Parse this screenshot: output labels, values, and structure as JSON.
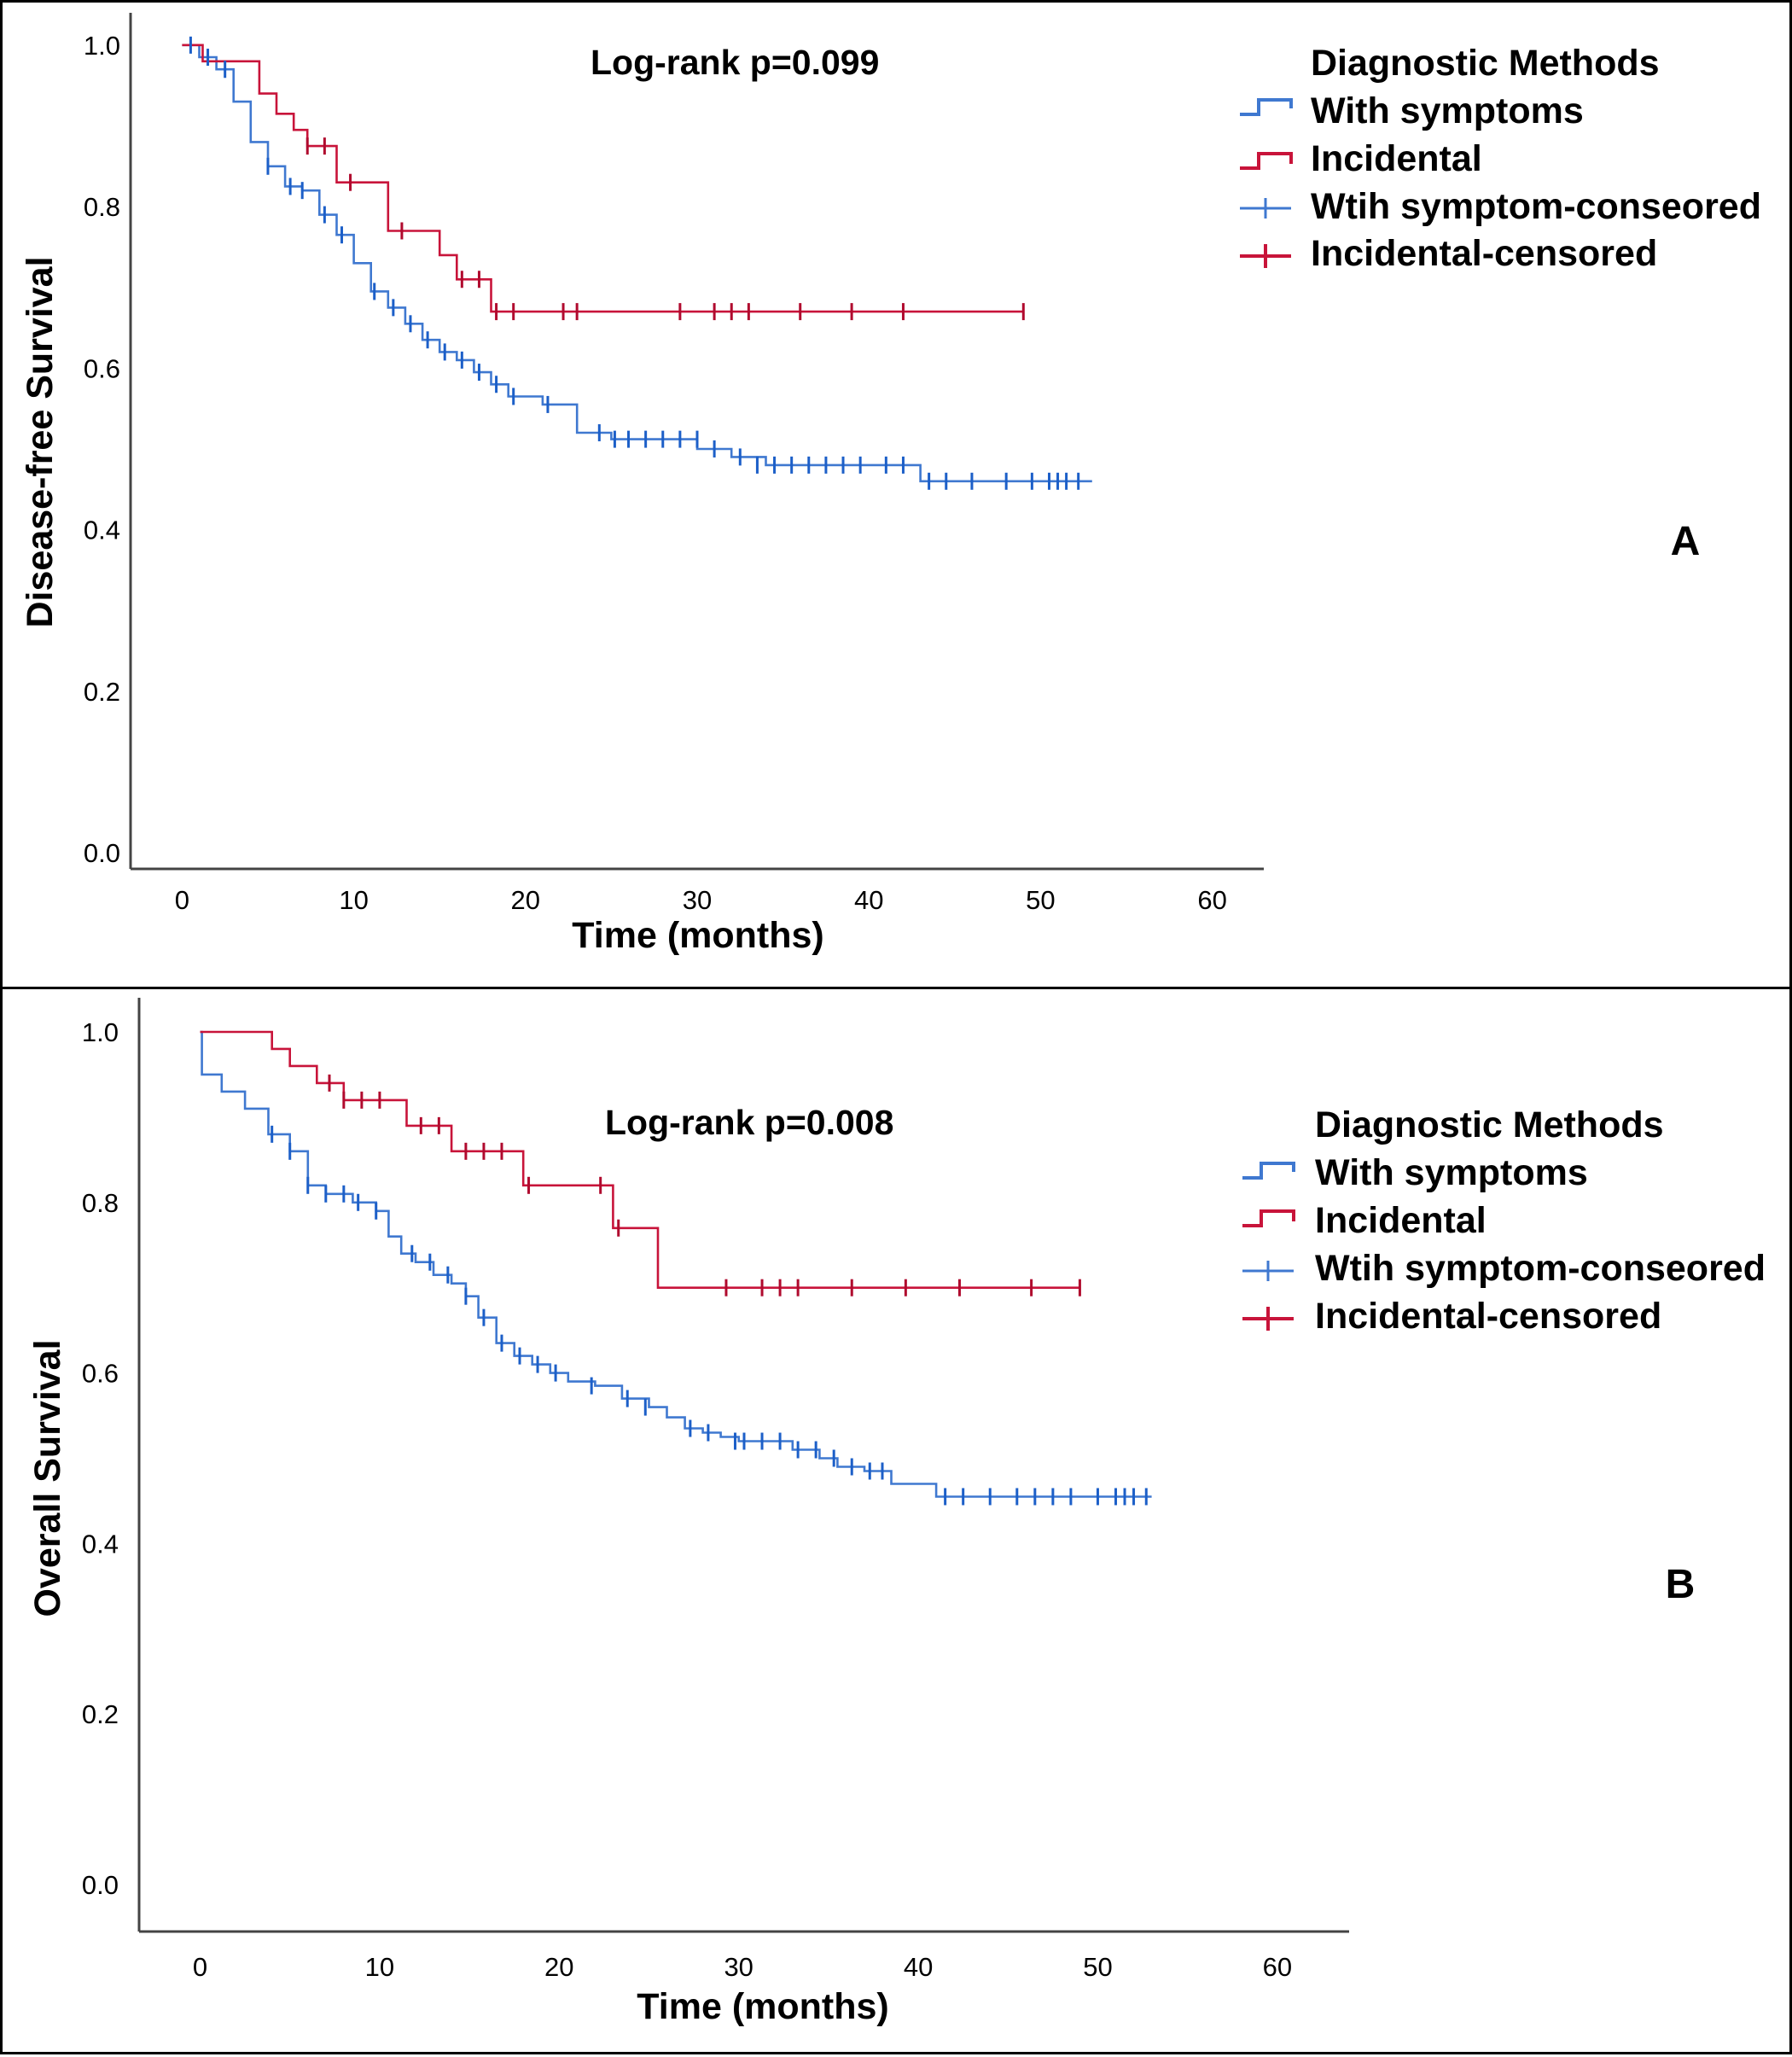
{
  "colors": {
    "with_symptoms": "#3f78d0",
    "with_symptoms_censor": "#1c5fc8",
    "incidental": "#c8143a",
    "incidental_censor": "#b00a2e",
    "axis": "#444444"
  },
  "chart_data": [
    {
      "type": "line",
      "subtype": "kaplan-meier",
      "panel_label": "A",
      "annotation": "Log-rank p=0.099",
      "xlabel": "Time (months)",
      "ylabel": "Disease-free Survival",
      "xlim": [
        -3,
        63
      ],
      "ylim": [
        -0.02,
        1.04
      ],
      "xticks": [
        0,
        10,
        20,
        30,
        40,
        50,
        60
      ],
      "yticks": [
        0.0,
        0.2,
        0.4,
        0.6,
        0.8,
        1.0
      ],
      "ytick_labels": [
        "0.0",
        "0.2",
        "0.4",
        "0.6",
        "0.8",
        "1.0"
      ],
      "legend_title": "Diagnostic Methods",
      "legend": [
        "With symptoms",
        "Incidental",
        "Wtih symptom-conseored",
        "Incidental-censored"
      ],
      "series": [
        {
          "name": "With symptoms",
          "color_key": "with_symptoms",
          "steps": [
            [
              0,
              1.0
            ],
            [
              1,
              0.985
            ],
            [
              2,
              0.97
            ],
            [
              3,
              0.93
            ],
            [
              4,
              0.88
            ],
            [
              5,
              0.85
            ],
            [
              6,
              0.825
            ],
            [
              7,
              0.82
            ],
            [
              8,
              0.79
            ],
            [
              9,
              0.765
            ],
            [
              10,
              0.73
            ],
            [
              11,
              0.695
            ],
            [
              12,
              0.675
            ],
            [
              13,
              0.655
            ],
            [
              14,
              0.635
            ],
            [
              15,
              0.62
            ],
            [
              16,
              0.61
            ],
            [
              17,
              0.595
            ],
            [
              18,
              0.58
            ],
            [
              19,
              0.565
            ],
            [
              21,
              0.555
            ],
            [
              23,
              0.52
            ],
            [
              25,
              0.512
            ],
            [
              30,
              0.5
            ],
            [
              32,
              0.49
            ],
            [
              34,
              0.48
            ],
            [
              43,
              0.46
            ],
            [
              53,
              0.46
            ]
          ],
          "censored": [
            [
              0.5,
              1.0
            ],
            [
              1.5,
              0.985
            ],
            [
              2.5,
              0.97
            ],
            [
              5,
              0.85
            ],
            [
              6.3,
              0.825
            ],
            [
              7,
              0.82
            ],
            [
              8.3,
              0.79
            ],
            [
              9.3,
              0.765
            ],
            [
              11.2,
              0.695
            ],
            [
              12.3,
              0.675
            ],
            [
              13.3,
              0.655
            ],
            [
              14.3,
              0.635
            ],
            [
              15.3,
              0.62
            ],
            [
              16.3,
              0.61
            ],
            [
              17.3,
              0.595
            ],
            [
              18.3,
              0.58
            ],
            [
              19.3,
              0.565
            ],
            [
              21.3,
              0.555
            ],
            [
              24.3,
              0.52
            ],
            [
              25.2,
              0.512
            ],
            [
              26,
              0.512
            ],
            [
              27,
              0.512
            ],
            [
              28,
              0.512
            ],
            [
              29,
              0.512
            ],
            [
              30,
              0.512
            ],
            [
              31,
              0.5
            ],
            [
              32.5,
              0.49
            ],
            [
              33.5,
              0.48
            ],
            [
              34.5,
              0.48
            ],
            [
              35.5,
              0.48
            ],
            [
              36.5,
              0.48
            ],
            [
              37.5,
              0.48
            ],
            [
              38.5,
              0.48
            ],
            [
              39.5,
              0.48
            ],
            [
              41,
              0.48
            ],
            [
              42,
              0.48
            ],
            [
              43.5,
              0.46
            ],
            [
              44.5,
              0.46
            ],
            [
              46,
              0.46
            ],
            [
              48,
              0.46
            ],
            [
              49.5,
              0.46
            ],
            [
              50.5,
              0.46
            ],
            [
              51,
              0.46
            ],
            [
              51.5,
              0.46
            ],
            [
              52.2,
              0.46
            ]
          ]
        },
        {
          "name": "Incidental",
          "color_key": "incidental",
          "steps": [
            [
              0,
              1.0
            ],
            [
              1.2,
              0.98
            ],
            [
              4.5,
              0.94
            ],
            [
              5.5,
              0.915
            ],
            [
              6.5,
              0.895
            ],
            [
              7.3,
              0.875
            ],
            [
              9,
              0.83
            ],
            [
              12,
              0.77
            ],
            [
              15,
              0.74
            ],
            [
              16,
              0.71
            ],
            [
              18,
              0.67
            ],
            [
              49,
              0.67
            ]
          ],
          "censored": [
            [
              7.3,
              0.875
            ],
            [
              8.3,
              0.875
            ],
            [
              9.8,
              0.83
            ],
            [
              12.8,
              0.77
            ],
            [
              16.3,
              0.71
            ],
            [
              17.3,
              0.71
            ],
            [
              18.3,
              0.67
            ],
            [
              19.3,
              0.67
            ],
            [
              22.2,
              0.67
            ],
            [
              23,
              0.67
            ],
            [
              29,
              0.67
            ],
            [
              31,
              0.67
            ],
            [
              32,
              0.67
            ],
            [
              33,
              0.67
            ],
            [
              36,
              0.67
            ],
            [
              39,
              0.67
            ],
            [
              42,
              0.67
            ],
            [
              49,
              0.67
            ]
          ]
        }
      ]
    },
    {
      "type": "line",
      "subtype": "kaplan-meier",
      "panel_label": "B",
      "annotation": "Log-rank p=0.008",
      "xlabel": "Time (months)",
      "ylabel": "Overall Survival",
      "xlim": [
        -3.4,
        64
      ],
      "ylim": [
        -0.055,
        1.04
      ],
      "xticks": [
        0,
        10,
        20,
        30,
        40,
        50,
        60
      ],
      "yticks": [
        0.0,
        0.2,
        0.4,
        0.6,
        0.8,
        1.0
      ],
      "ytick_labels": [
        "0.0",
        "0.2",
        "0.4",
        "0.6",
        "0.8",
        "1.0"
      ],
      "legend_title": "Diagnostic Methods",
      "legend": [
        "With symptoms",
        "Incidental",
        "Wtih symptom-conseored",
        "Incidental-censored"
      ],
      "series": [
        {
          "name": "With symptoms",
          "color_key": "with_symptoms",
          "steps": [
            [
              0,
              1.0
            ],
            [
              0.1,
              0.95
            ],
            [
              1.2,
              0.93
            ],
            [
              2.5,
              0.91
            ],
            [
              3.8,
              0.88
            ],
            [
              5,
              0.86
            ],
            [
              6,
              0.82
            ],
            [
              7,
              0.81
            ],
            [
              8.5,
              0.8
            ],
            [
              9.8,
              0.79
            ],
            [
              10.5,
              0.76
            ],
            [
              11.2,
              0.74
            ],
            [
              12,
              0.73
            ],
            [
              13,
              0.715
            ],
            [
              14,
              0.705
            ],
            [
              14.8,
              0.69
            ],
            [
              15.5,
              0.665
            ],
            [
              16.5,
              0.635
            ],
            [
              17.5,
              0.62
            ],
            [
              18.5,
              0.61
            ],
            [
              19.5,
              0.6
            ],
            [
              20.5,
              0.59
            ],
            [
              22,
              0.585
            ],
            [
              23.5,
              0.57
            ],
            [
              25,
              0.56
            ],
            [
              26,
              0.548
            ],
            [
              27,
              0.535
            ],
            [
              28,
              0.53
            ],
            [
              29,
              0.525
            ],
            [
              30,
              0.52
            ],
            [
              33,
              0.51
            ],
            [
              34.5,
              0.5
            ],
            [
              35.5,
              0.49
            ],
            [
              37,
              0.485
            ],
            [
              38.5,
              0.47
            ],
            [
              41,
              0.455
            ],
            [
              53,
              0.455
            ]
          ],
          "censored": [
            [
              4,
              0.88
            ],
            [
              5,
              0.86
            ],
            [
              6,
              0.82
            ],
            [
              7,
              0.81
            ],
            [
              8,
              0.81
            ],
            [
              8.8,
              0.8
            ],
            [
              9.8,
              0.79
            ],
            [
              11.8,
              0.74
            ],
            [
              12.8,
              0.73
            ],
            [
              13.8,
              0.715
            ],
            [
              14.8,
              0.69
            ],
            [
              15.8,
              0.665
            ],
            [
              16.8,
              0.635
            ],
            [
              17.8,
              0.62
            ],
            [
              18.8,
              0.61
            ],
            [
              19.8,
              0.6
            ],
            [
              21.8,
              0.585
            ],
            [
              23.8,
              0.57
            ],
            [
              24.8,
              0.56
            ],
            [
              27.3,
              0.535
            ],
            [
              28.3,
              0.53
            ],
            [
              29.8,
              0.52
            ],
            [
              30.3,
              0.52
            ],
            [
              31.3,
              0.52
            ],
            [
              32.3,
              0.52
            ],
            [
              33.3,
              0.51
            ],
            [
              34.3,
              0.51
            ],
            [
              35.3,
              0.5
            ],
            [
              36.3,
              0.49
            ],
            [
              37.3,
              0.485
            ],
            [
              38,
              0.485
            ],
            [
              41.5,
              0.455
            ],
            [
              42.5,
              0.455
            ],
            [
              44,
              0.455
            ],
            [
              45.5,
              0.455
            ],
            [
              46.5,
              0.455
            ],
            [
              47.5,
              0.455
            ],
            [
              48.5,
              0.455
            ],
            [
              50,
              0.455
            ],
            [
              51,
              0.455
            ],
            [
              51.5,
              0.455
            ],
            [
              52,
              0.455
            ],
            [
              52.7,
              0.455
            ]
          ]
        },
        {
          "name": "Incidental",
          "color_key": "incidental",
          "steps": [
            [
              0,
              1.0
            ],
            [
              4,
              0.98
            ],
            [
              5,
              0.96
            ],
            [
              6.5,
              0.94
            ],
            [
              8,
              0.92
            ],
            [
              11.5,
              0.89
            ],
            [
              14,
              0.86
            ],
            [
              18,
              0.82
            ],
            [
              23,
              0.77
            ],
            [
              25.5,
              0.7
            ],
            [
              49,
              0.7
            ]
          ],
          "censored": [
            [
              7.2,
              0.94
            ],
            [
              8,
              0.92
            ],
            [
              9,
              0.92
            ],
            [
              10,
              0.92
            ],
            [
              12.3,
              0.89
            ],
            [
              13.3,
              0.89
            ],
            [
              14.8,
              0.86
            ],
            [
              15.8,
              0.86
            ],
            [
              16.8,
              0.86
            ],
            [
              18.3,
              0.82
            ],
            [
              22.3,
              0.82
            ],
            [
              23.3,
              0.77
            ],
            [
              29.3,
              0.7
            ],
            [
              31.3,
              0.7
            ],
            [
              32.3,
              0.7
            ],
            [
              33.3,
              0.7
            ],
            [
              36.3,
              0.7
            ],
            [
              39.3,
              0.7
            ],
            [
              42.3,
              0.7
            ],
            [
              46.3,
              0.7
            ],
            [
              49,
              0.7
            ]
          ]
        }
      ]
    }
  ]
}
